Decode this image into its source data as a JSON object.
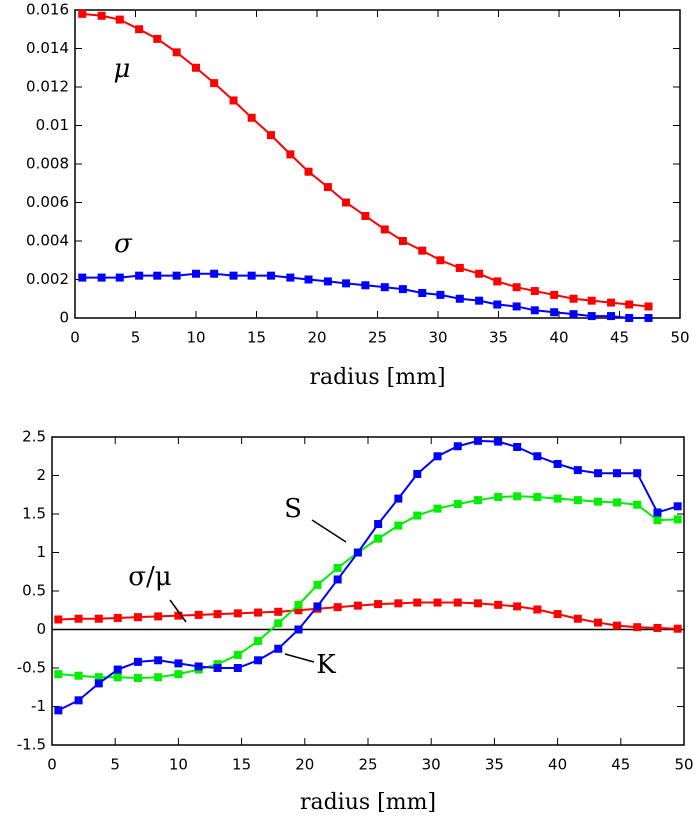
{
  "chart_data": [
    {
      "type": "line",
      "xlabel": "radius [mm]",
      "xlim": [
        0,
        50
      ],
      "ylim": [
        0,
        0.016
      ],
      "xticks": [
        0,
        5,
        10,
        15,
        20,
        25,
        30,
        35,
        40,
        45,
        50
      ],
      "yticks": [
        0,
        0.002,
        0.004,
        0.006,
        0.008,
        0.01,
        0.012,
        0.014,
        0.016
      ],
      "x": [
        0.6,
        2.2,
        3.7,
        5.3,
        6.8,
        8.4,
        10,
        11.5,
        13.1,
        14.6,
        16.2,
        17.8,
        19.3,
        20.9,
        22.4,
        24,
        25.6,
        27.1,
        28.7,
        30.2,
        31.8,
        33.4,
        34.9,
        36.5,
        38,
        39.6,
        41.2,
        42.7,
        44.3,
        45.8,
        47.4
      ],
      "series": [
        {
          "name": "μ",
          "color": "#ff0000",
          "values": [
            0.0158,
            0.0157,
            0.0155,
            0.015,
            0.0145,
            0.0138,
            0.013,
            0.0122,
            0.0113,
            0.0104,
            0.0095,
            0.0085,
            0.0076,
            0.0068,
            0.006,
            0.0053,
            0.0046,
            0.004,
            0.0035,
            0.003,
            0.0026,
            0.0023,
            0.0019,
            0.0016,
            0.0014,
            0.0012,
            0.001,
            0.0009,
            0.0008,
            0.0007,
            0.0006
          ]
        },
        {
          "name": "σ",
          "color": "#0000ff",
          "values": [
            0.0021,
            0.0021,
            0.0021,
            0.0022,
            0.0022,
            0.0022,
            0.0023,
            0.0023,
            0.0022,
            0.0022,
            0.0022,
            0.0021,
            0.002,
            0.0019,
            0.0018,
            0.0017,
            0.0016,
            0.0015,
            0.0013,
            0.0012,
            0.001,
            0.0009,
            0.0007,
            0.0006,
            0.0004,
            0.0003,
            0.0002,
            0.0001,
            0.0001,
            0,
            0
          ]
        }
      ]
    },
    {
      "type": "line",
      "xlabel": "radius [mm]",
      "xlim": [
        0,
        50
      ],
      "ylim": [
        -1.5,
        2.5
      ],
      "xticks": [
        0,
        5,
        10,
        15,
        20,
        25,
        30,
        35,
        40,
        45,
        50
      ],
      "yticks": [
        -1.5,
        -1,
        -0.5,
        0,
        0.5,
        1,
        1.5,
        2,
        2.5
      ],
      "x": [
        0.5,
        2.1,
        3.7,
        5.2,
        6.8,
        8.4,
        10,
        11.6,
        13.1,
        14.7,
        16.3,
        17.9,
        19.5,
        21,
        22.6,
        24.2,
        25.8,
        27.4,
        28.9,
        30.5,
        32.1,
        33.7,
        35.3,
        36.8,
        38.4,
        40,
        41.6,
        43.2,
        44.7,
        46.3,
        47.9,
        49.5
      ],
      "series": [
        {
          "name": "σ/μ",
          "color": "#ff0000",
          "values": [
            0.13,
            0.14,
            0.14,
            0.15,
            0.16,
            0.17,
            0.18,
            0.19,
            0.2,
            0.21,
            0.22,
            0.23,
            0.25,
            0.27,
            0.29,
            0.31,
            0.33,
            0.34,
            0.35,
            0.35,
            0.35,
            0.34,
            0.32,
            0.3,
            0.26,
            0.2,
            0.14,
            0.09,
            0.05,
            0.03,
            0.02,
            0.01
          ]
        },
        {
          "name": "S",
          "color": "#00ee00",
          "values": [
            -0.58,
            -0.6,
            -0.62,
            -0.62,
            -0.63,
            -0.62,
            -0.58,
            -0.52,
            -0.45,
            -0.33,
            -0.15,
            0.08,
            0.32,
            0.58,
            0.8,
            1,
            1.18,
            1.35,
            1.48,
            1.57,
            1.63,
            1.68,
            1.72,
            1.73,
            1.72,
            1.7,
            1.68,
            1.66,
            1.65,
            1.62,
            1.42,
            1.43
          ]
        },
        {
          "name": "K",
          "color": "#0000ff",
          "values": [
            -1.05,
            -0.92,
            -0.7,
            -0.52,
            -0.42,
            -0.4,
            -0.44,
            -0.48,
            -0.5,
            -0.5,
            -0.4,
            -0.25,
            0,
            0.3,
            0.65,
            1,
            1.37,
            1.7,
            2.02,
            2.25,
            2.38,
            2.45,
            2.44,
            2.37,
            2.25,
            2.15,
            2.07,
            2.03,
            2.03,
            2.03,
            1.52,
            1.6
          ]
        }
      ]
    }
  ]
}
